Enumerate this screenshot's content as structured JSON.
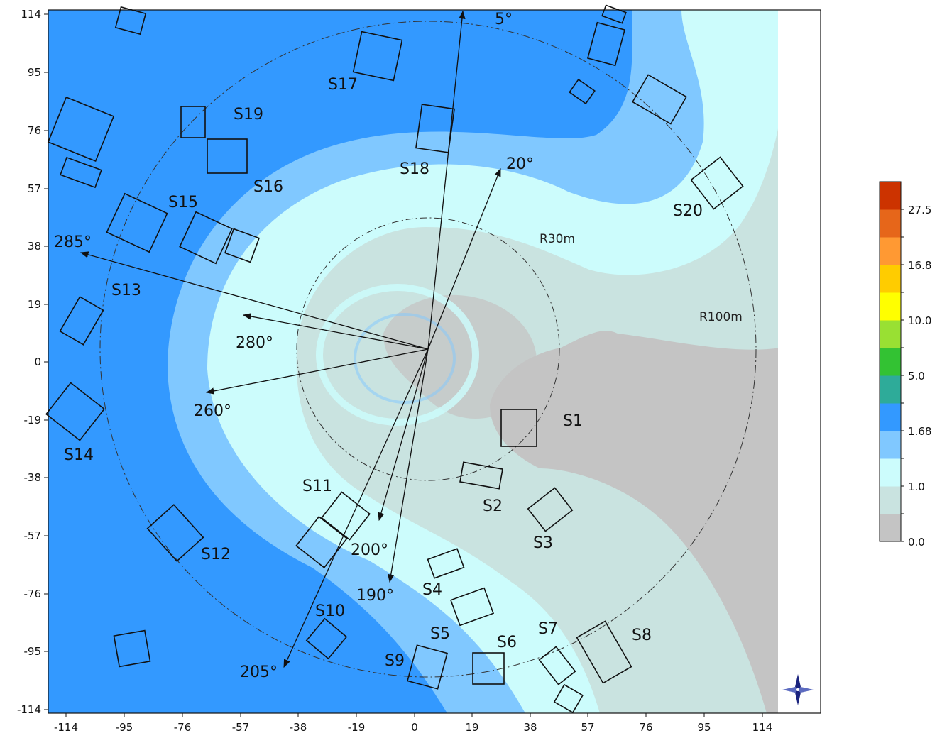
{
  "map": {
    "x_ticks": [
      "-114",
      "-95",
      "-76",
      "-57",
      "-38",
      "-19",
      "0",
      "19",
      "38",
      "57",
      "76",
      "95",
      "114"
    ],
    "y_ticks": [
      "114",
      "95",
      "76",
      "57",
      "38",
      "19",
      "0",
      "-19",
      "-38",
      "-57",
      "-76",
      "-95",
      "-114"
    ],
    "radius_labels": {
      "inner": "R30m",
      "outer": "R100m"
    },
    "arrows": [
      {
        "label": "5°",
        "angle": 5
      },
      {
        "label": "20°",
        "angle": 20
      },
      {
        "label": "285°",
        "angle": 285
      },
      {
        "label": "280°",
        "angle": 280
      },
      {
        "label": "260°",
        "angle": 260
      },
      {
        "label": "200°",
        "angle": 200
      },
      {
        "label": "190°",
        "angle": 190
      },
      {
        "label": "205°",
        "angle": 205
      }
    ],
    "buildings": [
      "S1",
      "S2",
      "S3",
      "S4",
      "S5",
      "S6",
      "S7",
      "S8",
      "S9",
      "S10",
      "S11",
      "S12",
      "S13",
      "S14",
      "S15",
      "S16",
      "S17",
      "S18",
      "S19",
      "S20"
    ],
    "compass_icon": "compass-rose-icon"
  },
  "colorbar": {
    "tick_labels": [
      "0.0",
      "1.0",
      "1.68",
      "5.0",
      "10.0",
      "16.8",
      "27.5"
    ],
    "colors": {
      "band0": "#c4c4c4",
      "band1": "#c9e3e0",
      "band2": "#ccfcfc",
      "band3": "#80c8ff",
      "band4": "#3399ff",
      "band5": "#2eab99",
      "band6": "#33c233",
      "band7": "#99e033",
      "band8": "#ffff00",
      "band9": "#ffcc00",
      "band10": "#ff9933",
      "band11": "#e6661a",
      "band12": "#cc3300"
    }
  }
}
